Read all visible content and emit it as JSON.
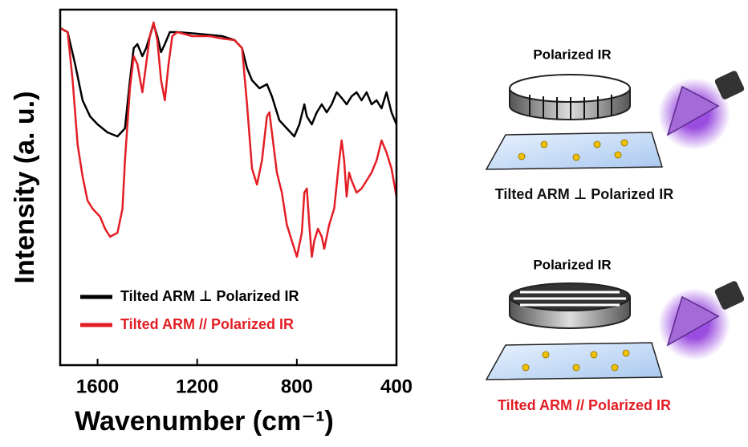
{
  "chart_data": {
    "type": "line",
    "x_label": "Wavenumber (cm⁻¹)",
    "y_label": "Intensity (a. u.)",
    "xlim": [
      1750,
      400
    ],
    "ylim": [
      0,
      443
    ],
    "xticks": [
      1600,
      1200,
      800,
      400
    ],
    "legend": "lower-left",
    "series": [
      {
        "name": "Tilted ARM ⊥ Polarized IR",
        "color": "#000000",
        "x": [
          1750,
          1720,
          1690,
          1660,
          1630,
          1600,
          1560,
          1520,
          1490,
          1470,
          1455,
          1440,
          1420,
          1405,
          1390,
          1375,
          1360,
          1345,
          1330,
          1310,
          1280,
          1200,
          1100,
          1050,
          1020,
          1000,
          980,
          950,
          920,
          900,
          870,
          840,
          810,
          790,
          770,
          760,
          740,
          720,
          700,
          680,
          660,
          640,
          620,
          600,
          580,
          560,
          540,
          520,
          500,
          480,
          460,
          440,
          420,
          400
        ],
        "values": [
          420,
          415,
          375,
          330,
          310,
          300,
          290,
          285,
          295,
          355,
          395,
          400,
          385,
          395,
          410,
          425,
          410,
          390,
          400,
          415,
          415,
          413,
          410,
          405,
          395,
          370,
          355,
          345,
          350,
          335,
          305,
          295,
          285,
          300,
          325,
          310,
          300,
          315,
          325,
          315,
          325,
          340,
          333,
          325,
          335,
          340,
          330,
          340,
          325,
          330,
          320,
          340,
          315,
          300
        ]
      },
      {
        "name": "Tilted ARM // Polarized IR",
        "color": "#e31e24",
        "x": [
          1750,
          1720,
          1700,
          1680,
          1660,
          1640,
          1620,
          1590,
          1570,
          1550,
          1520,
          1500,
          1490,
          1470,
          1455,
          1440,
          1420,
          1405,
          1390,
          1375,
          1360,
          1345,
          1330,
          1315,
          1300,
          1280,
          1220,
          1150,
          1100,
          1050,
          1020,
          1000,
          980,
          960,
          940,
          920,
          910,
          900,
          880,
          860,
          840,
          820,
          800,
          790,
          780,
          770,
          760,
          750,
          740,
          730,
          715,
          700,
          690,
          670,
          650,
          630,
          620,
          610,
          600,
          590,
          580,
          560,
          540,
          520,
          500,
          480,
          460,
          440,
          420,
          400
        ],
        "values": [
          420,
          415,
          355,
          275,
          235,
          205,
          195,
          185,
          170,
          160,
          165,
          195,
          255,
          345,
          385,
          375,
          340,
          375,
          410,
          427,
          405,
          355,
          330,
          375,
          410,
          415,
          410,
          410,
          407,
          405,
          395,
          325,
          245,
          225,
          255,
          310,
          315,
          290,
          240,
          215,
          175,
          155,
          135,
          150,
          165,
          215,
          220,
          175,
          135,
          155,
          170,
          160,
          145,
          175,
          195,
          255,
          280,
          255,
          210,
          240,
          230,
          215,
          220,
          230,
          240,
          255,
          280,
          265,
          245,
          210
        ]
      }
    ]
  },
  "diagrams": [
    {
      "title": "Polarized IR",
      "caption": "Tilted ARM ⊥ Polarized IR"
    },
    {
      "title": "Polarized IR",
      "caption": "Tilted ARM // Polarized IR"
    }
  ]
}
